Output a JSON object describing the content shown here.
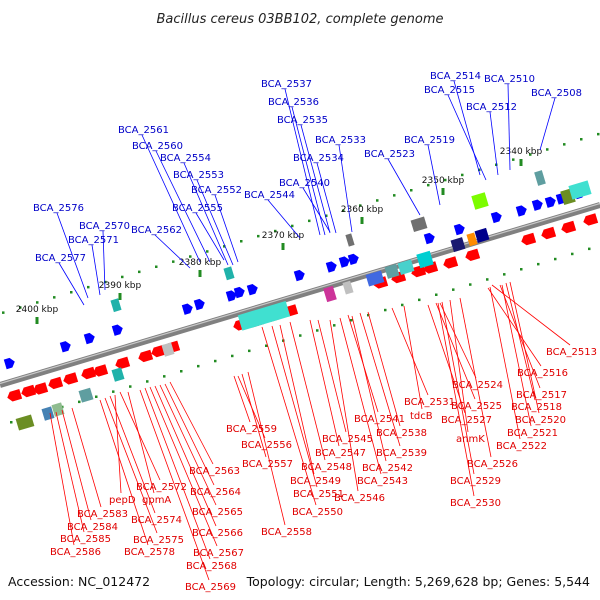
{
  "title": "Bacillus cereus 03BB102, complete genome",
  "accession_text": "Accession: NC_012472",
  "summary_text": "Topology: circular; Length: 5,269,628 bp; Genes: 5,544",
  "colors": {
    "forward": "#0000ff",
    "reverse": "#ff0000",
    "backbone": "#808080",
    "ticks": "#228b22"
  },
  "scale_ticks": [
    "2340 kbp",
    "2350 kbp",
    "2360 kbp",
    "2370 kbp",
    "2380 kbp",
    "2390 kbp",
    "2400 kbp"
  ],
  "forward_genes": [
    "BCA_2537",
    "BCA_2536",
    "BCA_2535",
    "BCA_2533",
    "BCA_2534",
    "BCA_2514",
    "BCA_2510",
    "BCA_2515",
    "BCA_2512",
    "BCA_2508",
    "BCA_2561",
    "BCA_2560",
    "BCA_2554",
    "BCA_2553",
    "BCA_2552",
    "BCA_2555",
    "BCA_2544",
    "BCA_2540",
    "BCA_2523",
    "BCA_2519",
    "BCA_2576",
    "BCA_2570",
    "BCA_2571",
    "BCA_2562",
    "BCA_2577"
  ],
  "reverse_genes": [
    "BCA_2513",
    "BCA_2516",
    "BCA_2517",
    "BCA_2518",
    "BCA_2520",
    "BCA_2521",
    "BCA_2522",
    "BCA_2524",
    "BCA_2525",
    "BCA_2527",
    "BCA_2531",
    "tdcB",
    "BCA_2541",
    "BCA_2538",
    "anmK",
    "BCA_2526",
    "BCA_2529",
    "BCA_2530",
    "BCA_2539",
    "BCA_2545",
    "BCA_2547",
    "BCA_2542",
    "BCA_2543",
    "BCA_2546",
    "BCA_2548",
    "BCA_2549",
    "BCA_2551",
    "BCA_2550",
    "BCA_2559",
    "BCA_2556",
    "BCA_2557",
    "BCA_2558",
    "BCA_2563",
    "BCA_2564",
    "BCA_2565",
    "BCA_2566",
    "BCA_2567",
    "BCA_2568",
    "BCA_2569",
    "BCA_2572",
    "gpmA",
    "pepD",
    "BCA_2574",
    "BCA_2575",
    "BCA_2578",
    "BCA_2583",
    "BCA_2584",
    "BCA_2585",
    "BCA_2586"
  ]
}
